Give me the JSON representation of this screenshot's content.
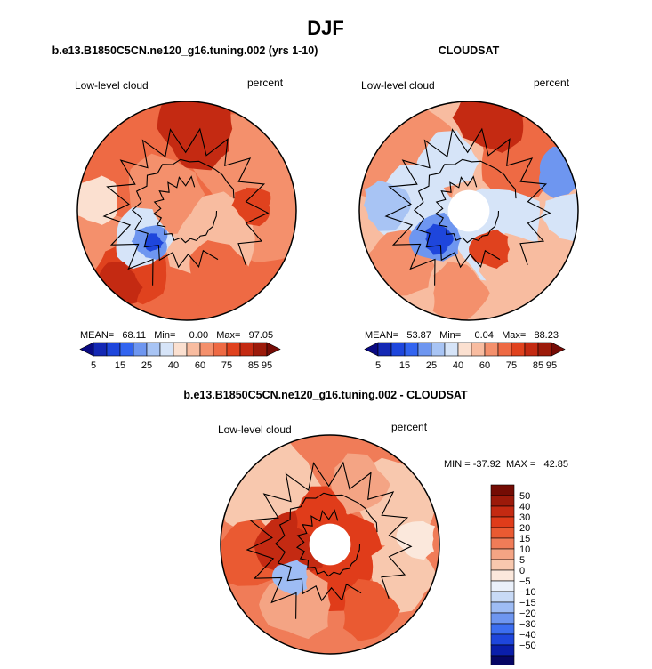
{
  "chart_data": {
    "type": "polar_contour_map",
    "title": "DJF",
    "colors": {
      "abs": [
        "#0a0a82",
        "#1428b4",
        "#1e46dc",
        "#3264f0",
        "#6e96f0",
        "#a8c4f4",
        "#d6e4f8",
        "#fbe0d0",
        "#f8bca0",
        "#f4906c",
        "#ee6a44",
        "#e0421e",
        "#c42a12",
        "#9c1a0a",
        "#760c06"
      ],
      "diff": [
        "#060664",
        "#0a1eaa",
        "#1e46dc",
        "#3c6ef0",
        "#6e96f0",
        "#9ebcf4",
        "#c8daf6",
        "#eaf0fa",
        "#fbe8dc",
        "#f8c8ae",
        "#f4a484",
        "#f07c58",
        "#ea5a32",
        "#e03c1a",
        "#c42a12",
        "#9c1a0a",
        "#740c04"
      ]
    },
    "panels": [
      {
        "heading": "b.e13.B1850C5CN.ne120_g16.tuning.002 (yrs 1-10)",
        "left_label": "Low-level cloud",
        "right_label": "percent",
        "stats_text": "MEAN=   68.11   Min=     0.00   Max=   97.05",
        "mean": 68.11,
        "min": 0.0,
        "max": 97.05,
        "pole_hole": false,
        "colorbar_ticks": [
          "5",
          "15",
          "25",
          "40",
          "60",
          "75",
          "85",
          "95"
        ]
      },
      {
        "heading": "CLOUDSAT",
        "left_label": "Low-level cloud",
        "right_label": "percent",
        "stats_text": "MEAN=   53.87   Min=     0.04   Max=   88.23",
        "mean": 53.87,
        "min": 0.04,
        "max": 88.23,
        "pole_hole": true,
        "colorbar_ticks": [
          "5",
          "15",
          "25",
          "40",
          "60",
          "75",
          "85",
          "95"
        ]
      },
      {
        "heading": "b.e13.B1850C5CN.ne120_g16.tuning.002 - CLOUDSAT",
        "left_label": "Low-level cloud",
        "right_label": "percent",
        "stats_text": "MIN = -37.92  MAX =   42.85",
        "min": -37.92,
        "max": 42.85,
        "pole_hole": true,
        "colorbar_ticks": [
          "50",
          "40",
          "30",
          "20",
          "15",
          "10",
          "5",
          "0",
          "−5",
          "−10",
          "−15",
          "−20",
          "−30",
          "−40",
          "−50"
        ]
      }
    ]
  }
}
